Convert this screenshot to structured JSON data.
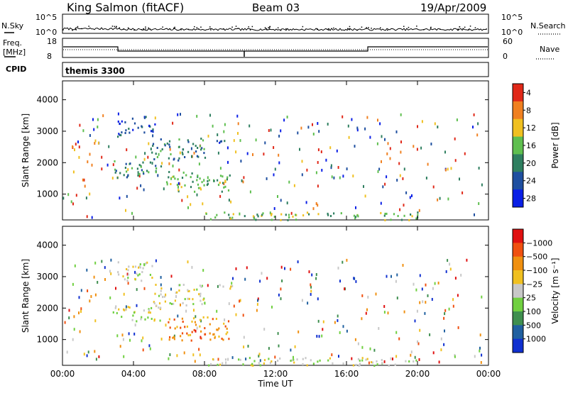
{
  "header": {
    "station": "King Salmon (fitACF)",
    "beam": "Beam 03",
    "date": "19/Apr/2009"
  },
  "top_panels": {
    "nsky_label": "N.Sky",
    "nsearch_label": "N.Search",
    "noise_ticks": [
      "10^5",
      "10^0"
    ],
    "freq_label_line1": "Freq.",
    "freq_label_line2": "[MHz]",
    "freq_ticks": [
      "18",
      "8"
    ],
    "nave_label": "Nave",
    "nave_ticks": [
      "60",
      "0"
    ],
    "cpid_label": "CPID",
    "cpid_value": "themis 3300"
  },
  "chart_data": [
    {
      "type": "heatmap",
      "name": "power",
      "ylabel": "Slant Range [km]",
      "xlabel": "",
      "ylim": [
        180,
        4600
      ],
      "yticks": [
        "1000",
        "2000",
        "3000",
        "4000"
      ],
      "xlim": [
        0,
        24
      ],
      "xticks": [
        "00:00",
        "04:00",
        "08:00",
        "12:00",
        "16:00",
        "20:00",
        "00:00"
      ],
      "colorbar": {
        "label": "Power [dB]",
        "ticks": [
          "4",
          "8",
          "12",
          "16",
          "20",
          "24",
          "28"
        ],
        "colors": [
          "#0a1fe6",
          "#1f4fa0",
          "#2f7f60",
          "#5fbf4f",
          "#f0c020",
          "#f08020",
          "#e02818"
        ]
      },
      "regions": [
        {
          "t0": 2.8,
          "t1": 5.6,
          "r0": 1550,
          "r1": 2100,
          "level": 2
        },
        {
          "t0": 5.0,
          "t1": 8.0,
          "r0": 2100,
          "r1": 2800,
          "level": 2
        },
        {
          "t0": 3.0,
          "t1": 5.2,
          "r0": 2850,
          "r1": 3500,
          "level": 1
        },
        {
          "t0": 5.8,
          "t1": 9.4,
          "r0": 1100,
          "r1": 1750,
          "level": 3
        },
        {
          "t0": 8.0,
          "t1": 9.6,
          "r0": 2650,
          "r1": 2800,
          "level": 1
        },
        {
          "t0": 8.0,
          "t1": 20.0,
          "r0": 200,
          "r1": 450,
          "level": 3
        }
      ]
    },
    {
      "type": "heatmap",
      "name": "velocity",
      "ylabel": "Slant Range [km]",
      "xlabel": "Time UT",
      "ylim": [
        180,
        4600
      ],
      "yticks": [
        "1000",
        "2000",
        "3000",
        "4000"
      ],
      "xlim": [
        0,
        24
      ],
      "xticks": [
        "00:00",
        "04:00",
        "08:00",
        "12:00",
        "16:00",
        "20:00",
        "00:00"
      ],
      "colorbar": {
        "label": "Velocity [m s⁻¹]",
        "ticks": [
          "1000",
          "500",
          "100",
          "25",
          "−25",
          "−100",
          "−500",
          "−1000"
        ],
        "colors": [
          "#1030d0",
          "#2060a0",
          "#3f8f4f",
          "#70d040",
          "#c8c8c8",
          "#f0c020",
          "#f09010",
          "#f05010",
          "#e01010"
        ]
      },
      "regions": [
        {
          "t0": 2.8,
          "t1": 5.6,
          "r0": 1550,
          "r1": 2100,
          "level": 4
        },
        {
          "t0": 5.0,
          "t1": 8.0,
          "r0": 2100,
          "r1": 2800,
          "level": 4
        },
        {
          "t0": 3.0,
          "t1": 5.2,
          "r0": 2850,
          "r1": 3500,
          "level": 4
        },
        {
          "t0": 5.8,
          "t1": 9.4,
          "r0": 1000,
          "r1": 1750,
          "level": 6
        },
        {
          "t0": 8.0,
          "t1": 9.6,
          "r0": 2650,
          "r1": 2800,
          "level": 4
        },
        {
          "t0": 8.0,
          "t1": 20.0,
          "r0": 200,
          "r1": 450,
          "level": 4
        }
      ]
    }
  ]
}
